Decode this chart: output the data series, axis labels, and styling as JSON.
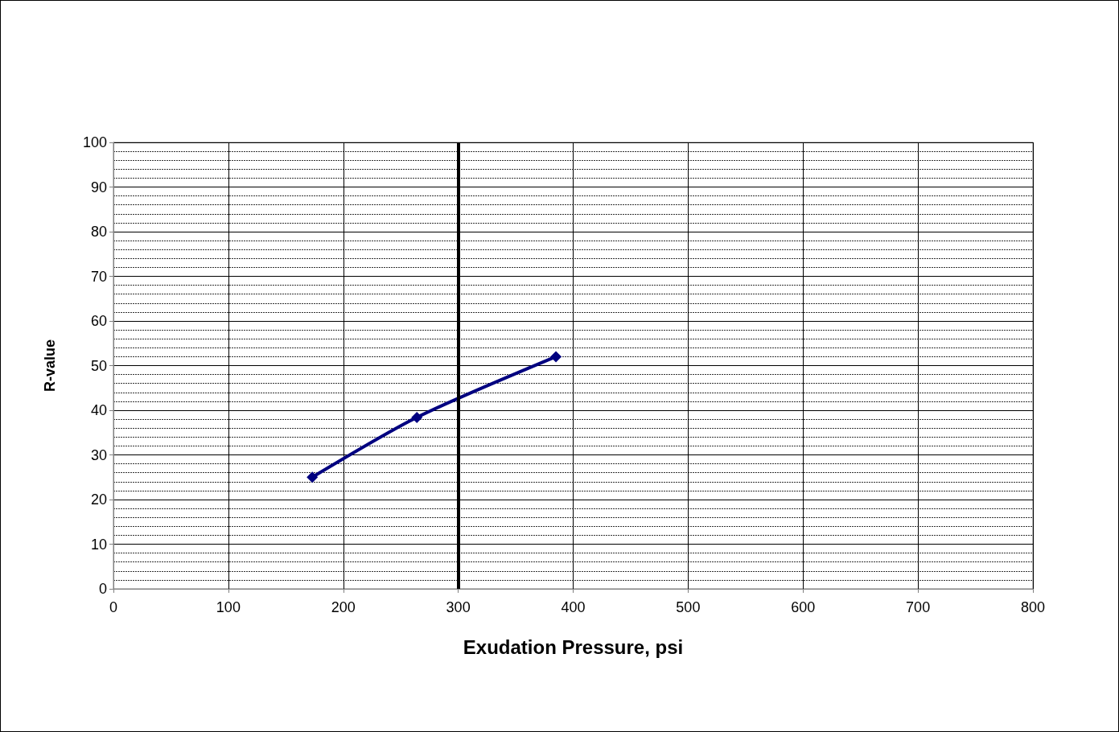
{
  "chart_data": {
    "type": "line",
    "xlabel": "Exudation Pressure, psi",
    "ylabel": "R-value",
    "x": [
      173,
      264,
      385
    ],
    "series": [
      {
        "color": "#000080",
        "values": [
          25.0,
          38.4,
          52.0
        ]
      }
    ],
    "xlim": [
      0,
      800
    ],
    "xticks": [
      0,
      100,
      200,
      300,
      400,
      500,
      600,
      700,
      800
    ],
    "ylim": [
      0,
      100
    ],
    "yticks": [
      0,
      10,
      20,
      30,
      40,
      50,
      60,
      70,
      80,
      90,
      100
    ],
    "ref_lines": [
      {
        "axis": "x",
        "value": 300,
        "color": "#000000"
      }
    ],
    "grid": true,
    "marker": "diamond",
    "line_style": "solid"
  }
}
